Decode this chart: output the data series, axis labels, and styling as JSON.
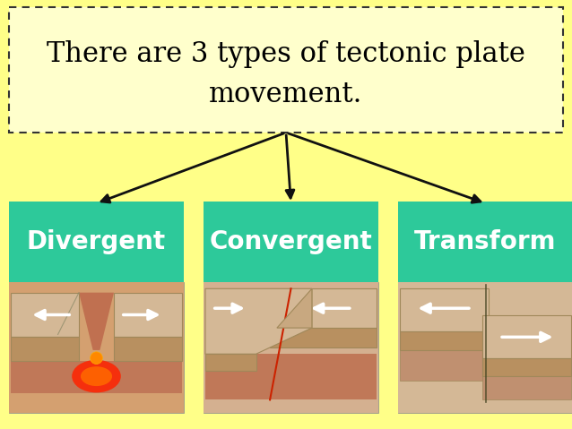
{
  "background_color": "#FFFF88",
  "title_text_line1": "There are 3 types of tectonic plate",
  "title_text_line2": "movement.",
  "title_box_bg": "#FFFFCC",
  "title_border_color": "#333333",
  "teal_color": "#2DC99A",
  "labels": [
    "Divergent",
    "Convergent",
    "Transform"
  ],
  "label_text_color": "#FFFFFF",
  "label_fontsize": 20,
  "title_fontsize": 22,
  "arrow_color": "#111111",
  "sand_top": "#D4B896",
  "sand_mid": "#C8A87A",
  "sand_bot": "#B89060",
  "mantle_color": "#CC7755",
  "magma_color": "#FF3300",
  "lava_glow": "#FF6600"
}
